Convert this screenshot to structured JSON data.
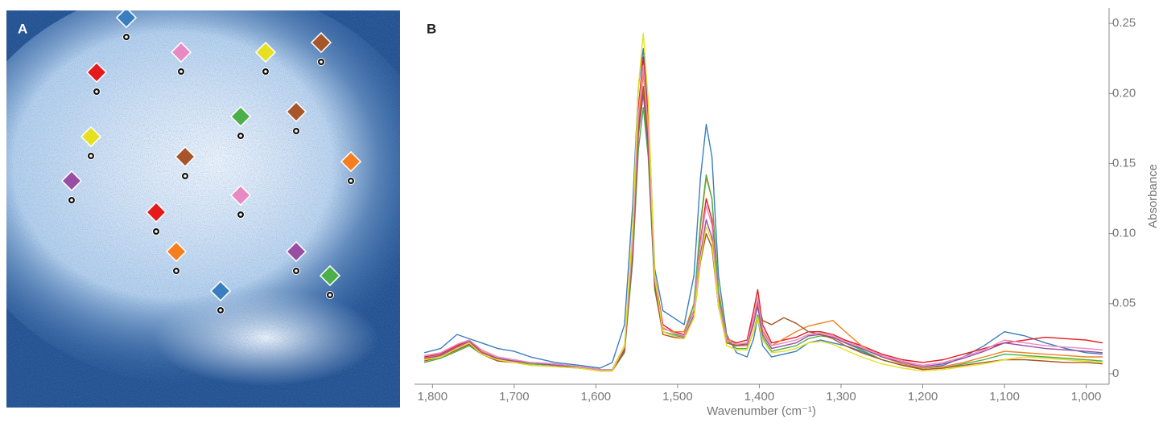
{
  "panel_a": {
    "label": "A"
  },
  "chart_data": {
    "type": "line",
    "panel_label": "B",
    "xlabel": "Wavenumber (cm⁻¹)",
    "ylabel": "Absorbance",
    "xlim": [
      1822,
      972
    ],
    "ylim": [
      -0.0075,
      0.261
    ],
    "xticks": [
      {
        "value": 1800,
        "label": "1,800"
      },
      {
        "value": 1700,
        "label": "1,700"
      },
      {
        "value": 1600,
        "label": "1,600"
      },
      {
        "value": 1500,
        "label": "1,500"
      },
      {
        "value": 1400,
        "label": "1,400"
      },
      {
        "value": 1300,
        "label": "1,300"
      },
      {
        "value": 1200,
        "label": "1,200"
      },
      {
        "value": 1100,
        "label": "1,100"
      },
      {
        "value": 1000,
        "label": "1,000"
      }
    ],
    "yticks": [
      0,
      0.05,
      {
        "value": 0.1,
        "label": "0.10"
      },
      0.15,
      {
        "value": 0.2,
        "label": "0.20"
      },
      0.25
    ],
    "x": [
      1810,
      1790,
      1770,
      1755,
      1740,
      1720,
      1700,
      1680,
      1650,
      1620,
      1595,
      1580,
      1565,
      1555,
      1548,
      1542,
      1536,
      1528,
      1518,
      1505,
      1492,
      1480,
      1472,
      1465,
      1458,
      1450,
      1440,
      1428,
      1415,
      1407,
      1402,
      1396,
      1385,
      1370,
      1355,
      1340,
      1325,
      1310,
      1295,
      1275,
      1250,
      1225,
      1200,
      1175,
      1150,
      1125,
      1100,
      1075,
      1050,
      1025,
      1000,
      980
    ],
    "series": [
      {
        "color": "#3a7ebf",
        "values": [
          0.015,
          0.018,
          0.028,
          0.025,
          0.022,
          0.018,
          0.016,
          0.012,
          0.008,
          0.006,
          0.004,
          0.008,
          0.035,
          0.12,
          0.205,
          0.232,
          0.19,
          0.075,
          0.045,
          0.04,
          0.035,
          0.07,
          0.14,
          0.178,
          0.155,
          0.07,
          0.028,
          0.015,
          0.012,
          0.025,
          0.04,
          0.02,
          0.012,
          0.014,
          0.016,
          0.022,
          0.024,
          0.022,
          0.02,
          0.016,
          0.01,
          0.006,
          0.004,
          0.006,
          0.012,
          0.02,
          0.03,
          0.027,
          0.022,
          0.018,
          0.015,
          0.014
        ]
      },
      {
        "color": "#e41a1c",
        "values": [
          0.012,
          0.014,
          0.02,
          0.024,
          0.016,
          0.01,
          0.009,
          0.008,
          0.007,
          0.005,
          0.003,
          0.003,
          0.018,
          0.095,
          0.19,
          0.226,
          0.18,
          0.07,
          0.035,
          0.03,
          0.028,
          0.045,
          0.095,
          0.125,
          0.11,
          0.055,
          0.025,
          0.022,
          0.024,
          0.045,
          0.06,
          0.035,
          0.022,
          0.024,
          0.026,
          0.03,
          0.03,
          0.028,
          0.024,
          0.02,
          0.014,
          0.01,
          0.008,
          0.01,
          0.014,
          0.018,
          0.022,
          0.024,
          0.026,
          0.025,
          0.024,
          0.022
        ]
      },
      {
        "color": "#f57f20",
        "values": [
          0.01,
          0.013,
          0.018,
          0.022,
          0.016,
          0.011,
          0.009,
          0.007,
          0.006,
          0.005,
          0.003,
          0.003,
          0.02,
          0.09,
          0.18,
          0.215,
          0.17,
          0.065,
          0.032,
          0.03,
          0.03,
          0.05,
          0.105,
          0.14,
          0.125,
          0.06,
          0.026,
          0.02,
          0.02,
          0.035,
          0.05,
          0.03,
          0.02,
          0.025,
          0.03,
          0.034,
          0.036,
          0.038,
          0.03,
          0.02,
          0.012,
          0.007,
          0.004,
          0.005,
          0.008,
          0.012,
          0.016,
          0.015,
          0.014,
          0.013,
          0.012,
          0.012
        ]
      },
      {
        "color": "#4daf4a",
        "values": [
          0.008,
          0.011,
          0.016,
          0.02,
          0.014,
          0.01,
          0.008,
          0.007,
          0.006,
          0.004,
          0.002,
          0.002,
          0.015,
          0.08,
          0.16,
          0.19,
          0.155,
          0.06,
          0.03,
          0.028,
          0.027,
          0.05,
          0.108,
          0.142,
          0.125,
          0.058,
          0.024,
          0.018,
          0.018,
          0.03,
          0.042,
          0.026,
          0.016,
          0.018,
          0.02,
          0.025,
          0.027,
          0.026,
          0.022,
          0.017,
          0.01,
          0.006,
          0.003,
          0.004,
          0.007,
          0.01,
          0.014,
          0.013,
          0.012,
          0.011,
          0.01,
          0.009
        ]
      },
      {
        "color": "#984ea3",
        "values": [
          0.011,
          0.013,
          0.019,
          0.023,
          0.015,
          0.011,
          0.009,
          0.008,
          0.006,
          0.005,
          0.003,
          0.003,
          0.017,
          0.085,
          0.17,
          0.2,
          0.16,
          0.062,
          0.03,
          0.027,
          0.026,
          0.042,
          0.085,
          0.11,
          0.097,
          0.05,
          0.022,
          0.02,
          0.021,
          0.036,
          0.048,
          0.028,
          0.018,
          0.02,
          0.022,
          0.027,
          0.028,
          0.026,
          0.022,
          0.018,
          0.012,
          0.008,
          0.005,
          0.007,
          0.011,
          0.016,
          0.022,
          0.02,
          0.018,
          0.017,
          0.016,
          0.015
        ]
      },
      {
        "color": "#a65628",
        "values": [
          0.009,
          0.012,
          0.017,
          0.021,
          0.014,
          0.009,
          0.008,
          0.006,
          0.005,
          0.004,
          0.002,
          0.002,
          0.016,
          0.088,
          0.175,
          0.205,
          0.165,
          0.062,
          0.028,
          0.026,
          0.025,
          0.04,
          0.08,
          0.1,
          0.09,
          0.048,
          0.022,
          0.02,
          0.022,
          0.04,
          0.052,
          0.038,
          0.035,
          0.04,
          0.036,
          0.03,
          0.028,
          0.025,
          0.02,
          0.015,
          0.01,
          0.006,
          0.003,
          0.004,
          0.006,
          0.008,
          0.01,
          0.01,
          0.009,
          0.008,
          0.008,
          0.007
        ]
      },
      {
        "color": "#e78ac3",
        "values": [
          0.013,
          0.015,
          0.021,
          0.024,
          0.017,
          0.012,
          0.01,
          0.008,
          0.007,
          0.005,
          0.003,
          0.003,
          0.019,
          0.094,
          0.186,
          0.22,
          0.176,
          0.068,
          0.033,
          0.029,
          0.027,
          0.046,
          0.093,
          0.12,
          0.106,
          0.052,
          0.024,
          0.021,
          0.022,
          0.04,
          0.054,
          0.032,
          0.02,
          0.022,
          0.024,
          0.028,
          0.029,
          0.027,
          0.023,
          0.019,
          0.013,
          0.009,
          0.006,
          0.008,
          0.012,
          0.017,
          0.024,
          0.022,
          0.02,
          0.019,
          0.018,
          0.017
        ]
      },
      {
        "color": "#e6e020",
        "values": [
          0.01,
          0.012,
          0.018,
          0.022,
          0.014,
          0.01,
          0.008,
          0.006,
          0.005,
          0.004,
          0.002,
          0.002,
          0.02,
          0.105,
          0.205,
          0.243,
          0.195,
          0.07,
          0.03,
          0.027,
          0.025,
          0.04,
          0.082,
          0.105,
          0.094,
          0.048,
          0.02,
          0.017,
          0.017,
          0.03,
          0.04,
          0.024,
          0.015,
          0.016,
          0.018,
          0.022,
          0.023,
          0.021,
          0.017,
          0.012,
          0.007,
          0.004,
          0.002,
          0.003,
          0.005,
          0.007,
          0.01,
          0.012,
          0.011,
          0.01,
          0.009,
          0.008
        ]
      }
    ]
  }
}
